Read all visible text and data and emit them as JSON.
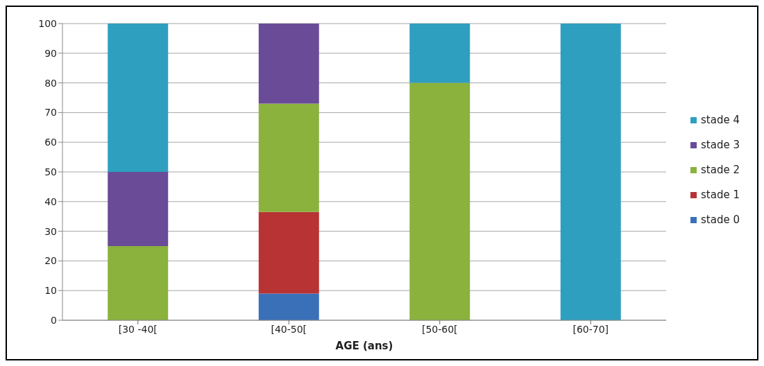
{
  "chart_data": {
    "type": "bar",
    "stacked": true,
    "xlabel": "AGE (ans)",
    "categories": [
      "[30 -40[",
      "[40-50[",
      "[50-60[",
      "[60-70]"
    ],
    "series": [
      {
        "name": "stade 0",
        "color": "#3a70b8",
        "values": [
          0,
          9,
          0,
          0
        ]
      },
      {
        "name": "stade 1",
        "color": "#b83333",
        "values": [
          0,
          27.5,
          0,
          0
        ]
      },
      {
        "name": "stade 2",
        "color": "#8ab23d",
        "values": [
          25,
          36.5,
          80,
          0
        ]
      },
      {
        "name": "stade 3",
        "color": "#6a4b98",
        "values": [
          25,
          27,
          0,
          0
        ]
      },
      {
        "name": "stade 4",
        "color": "#2f9fbf",
        "values": [
          50,
          0,
          20,
          100
        ]
      }
    ],
    "ylim": [
      0,
      100
    ],
    "yticks": [
      0,
      10,
      20,
      30,
      40,
      50,
      60,
      70,
      80,
      90,
      100
    ],
    "grid": "y",
    "legend": "right"
  }
}
